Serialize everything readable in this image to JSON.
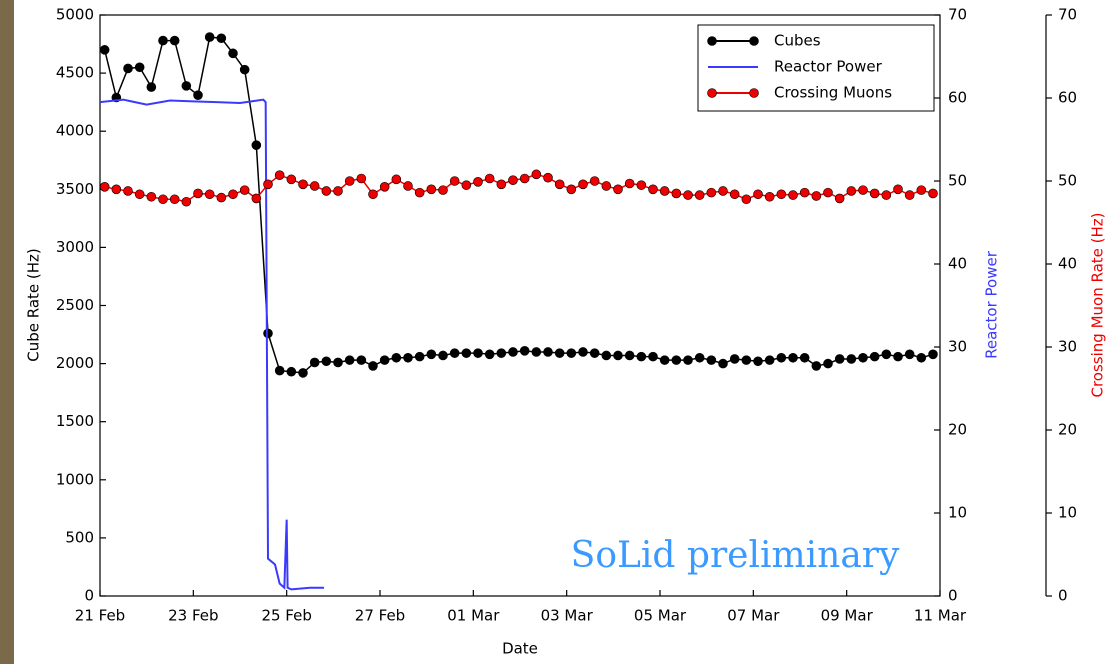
{
  "chart_data": {
    "type": "line",
    "xlabel": "Date",
    "ylabel": "Cube Rate (Hz)",
    "y2label": "Reactor Power",
    "y3label": "Crossing Muon Rate (Hz)",
    "annotation": "SoLid preliminary",
    "legend": "upper right",
    "xlim": [
      0,
      18
    ],
    "xticks": [
      {
        "value": 0,
        "label": "21 Feb"
      },
      {
        "value": 2,
        "label": "23 Feb"
      },
      {
        "value": 4,
        "label": "25 Feb"
      },
      {
        "value": 6,
        "label": "27 Feb"
      },
      {
        "value": 8,
        "label": "01 Mar"
      },
      {
        "value": 10,
        "label": "03 Mar"
      },
      {
        "value": 12,
        "label": "05 Mar"
      },
      {
        "value": 14,
        "label": "07 Mar"
      },
      {
        "value": 16,
        "label": "09 Mar"
      },
      {
        "value": 18,
        "label": "11 Mar"
      }
    ],
    "ylim": [
      0,
      5000
    ],
    "yticks": [
      0,
      500,
      1000,
      1500,
      2000,
      2500,
      3000,
      3500,
      4000,
      4500,
      5000
    ],
    "y2lim": [
      0,
      70
    ],
    "y2ticks": [
      0,
      10,
      20,
      30,
      40,
      50,
      60,
      70
    ],
    "y3lim": [
      0,
      70
    ],
    "y3ticks": [
      0,
      10,
      20,
      30,
      40,
      50,
      60,
      70
    ],
    "series": [
      {
        "name": "Cubes",
        "color": "#000000",
        "marker": true,
        "axis": "y",
        "x": [
          0.1,
          0.35,
          0.6,
          0.85,
          1.1,
          1.35,
          1.6,
          1.85,
          2.1,
          2.35,
          2.6,
          2.85,
          3.1,
          3.35,
          3.6,
          3.85,
          4.1,
          4.35,
          4.6,
          4.85,
          5.1,
          5.35,
          5.6,
          5.85,
          6.1,
          6.35,
          6.6,
          6.85,
          7.1,
          7.35,
          7.6,
          7.85,
          8.1,
          8.35,
          8.6,
          8.85,
          9.1,
          9.35,
          9.6,
          9.85,
          10.1,
          10.35,
          10.6,
          10.85,
          11.1,
          11.35,
          11.6,
          11.85,
          12.1,
          12.35,
          12.6,
          12.85,
          13.1,
          13.35,
          13.6,
          13.85,
          14.1,
          14.35,
          14.6,
          14.85,
          15.1,
          15.35,
          15.6,
          15.85,
          16.1,
          16.35,
          16.6,
          16.85,
          17.1,
          17.35,
          17.6,
          17.85
        ],
        "values": [
          4700,
          4290,
          4540,
          4550,
          4380,
          4780,
          4780,
          4390,
          4310,
          4810,
          4800,
          4670,
          4530,
          3880,
          2260,
          1940,
          1930,
          1920,
          2010,
          2020,
          2010,
          2030,
          2030,
          1980,
          2030,
          2050,
          2050,
          2060,
          2080,
          2070,
          2090,
          2090,
          2090,
          2080,
          2090,
          2100,
          2110,
          2100,
          2100,
          2090,
          2090,
          2100,
          2090,
          2070,
          2070,
          2070,
          2060,
          2060,
          2030,
          2030,
          2030,
          2050,
          2030,
          2000,
          2040,
          2030,
          2020,
          2030,
          2050,
          2050,
          2050,
          1980,
          2000,
          2040,
          2040,
          2050,
          2060,
          2080,
          2060,
          2080,
          2050,
          2080
        ]
      },
      {
        "name": "Reactor Power",
        "color": "#3a3aff",
        "marker": false,
        "axis": "y2",
        "x": [
          0,
          0.5,
          1,
          1.5,
          2,
          2.5,
          3,
          3.5,
          3.55,
          3.6,
          3.75,
          3.85,
          3.95,
          4.0,
          4.02,
          4.1,
          4.5,
          4.8
        ],
        "values": [
          59.5,
          59.8,
          59.2,
          59.7,
          59.6,
          59.5,
          59.4,
          59.8,
          59.5,
          4.5,
          3.8,
          1.5,
          1.0,
          9.2,
          1.0,
          0.8,
          1.0,
          1.0
        ]
      },
      {
        "name": "Crossing Muons",
        "color": "#ee0000",
        "marker": true,
        "axis": "y3",
        "x": [
          0.1,
          0.35,
          0.6,
          0.85,
          1.1,
          1.35,
          1.6,
          1.85,
          2.1,
          2.35,
          2.6,
          2.85,
          3.1,
          3.35,
          3.6,
          3.85,
          4.1,
          4.35,
          4.6,
          4.85,
          5.1,
          5.35,
          5.6,
          5.85,
          6.1,
          6.35,
          6.6,
          6.85,
          7.1,
          7.35,
          7.6,
          7.85,
          8.1,
          8.35,
          8.6,
          8.85,
          9.1,
          9.35,
          9.6,
          9.85,
          10.1,
          10.35,
          10.6,
          10.85,
          11.1,
          11.35,
          11.6,
          11.85,
          12.1,
          12.35,
          12.6,
          12.85,
          13.1,
          13.35,
          13.6,
          13.85,
          14.1,
          14.35,
          14.6,
          14.85,
          15.1,
          15.35,
          15.6,
          15.85,
          16.1,
          16.35,
          16.6,
          16.85,
          17.1,
          17.35,
          17.6,
          17.85
        ],
        "values": [
          49.3,
          49.0,
          48.8,
          48.4,
          48.1,
          47.8,
          47.8,
          47.5,
          48.5,
          48.4,
          48.0,
          48.4,
          48.9,
          47.9,
          49.6,
          50.7,
          50.2,
          49.6,
          49.4,
          48.8,
          48.8,
          50.0,
          50.3,
          48.4,
          49.3,
          50.2,
          49.4,
          48.6,
          49.0,
          48.9,
          50.0,
          49.5,
          49.9,
          50.3,
          49.6,
          50.1,
          50.3,
          50.8,
          50.4,
          49.6,
          49.0,
          49.6,
          50.0,
          49.4,
          49.0,
          49.7,
          49.5,
          49.0,
          48.8,
          48.5,
          48.3,
          48.3,
          48.6,
          48.8,
          48.4,
          47.8,
          48.4,
          48.1,
          48.4,
          48.3,
          48.6,
          48.2,
          48.6,
          47.9,
          48.8,
          48.9,
          48.5,
          48.3,
          49.0,
          48.3,
          48.9,
          48.5
        ]
      }
    ]
  }
}
